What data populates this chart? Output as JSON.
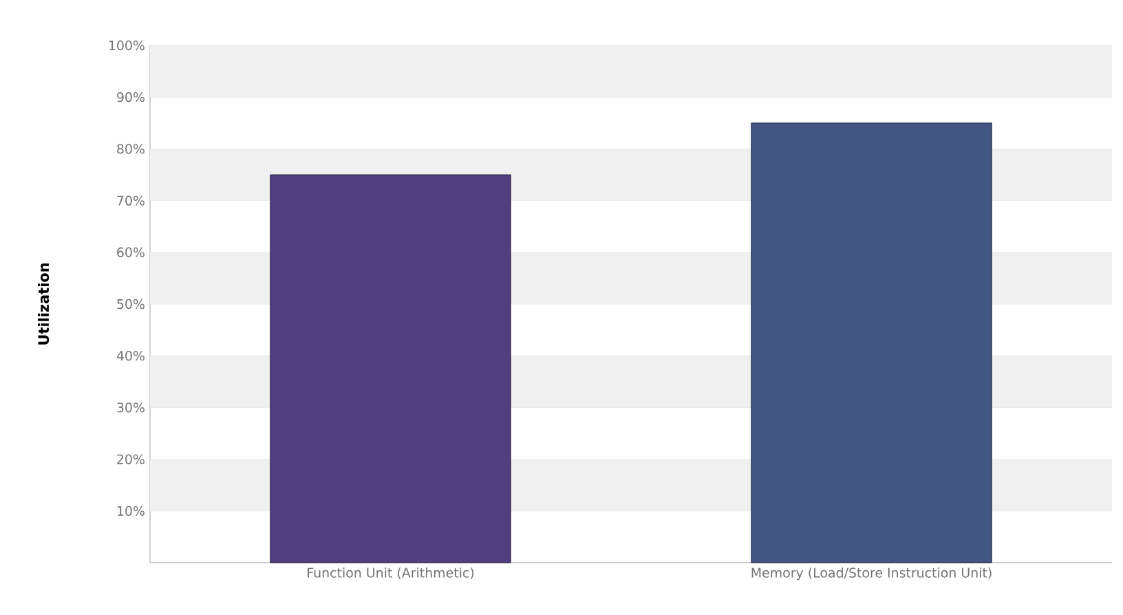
{
  "chart_data": {
    "type": "bar",
    "ylabel": "Utilization",
    "categories": [
      "Function Unit (Arithmetic)",
      "Memory (Load/Store Instruction Unit)"
    ],
    "values": [
      75,
      85
    ],
    "colors": [
      "#4f3f7e",
      "#435583"
    ],
    "ylim": [
      0,
      100
    ],
    "yticks": [
      {
        "value": 10,
        "label": "10%"
      },
      {
        "value": 20,
        "label": "20%"
      },
      {
        "value": 30,
        "label": "30%"
      },
      {
        "value": 40,
        "label": "40%"
      },
      {
        "value": 50,
        "label": "50%"
      },
      {
        "value": 60,
        "label": "60%"
      },
      {
        "value": 70,
        "label": "70%"
      },
      {
        "value": 80,
        "label": "80%"
      },
      {
        "value": 90,
        "label": "90%"
      },
      {
        "value": 100,
        "label": "100%"
      }
    ],
    "grid": "y"
  }
}
